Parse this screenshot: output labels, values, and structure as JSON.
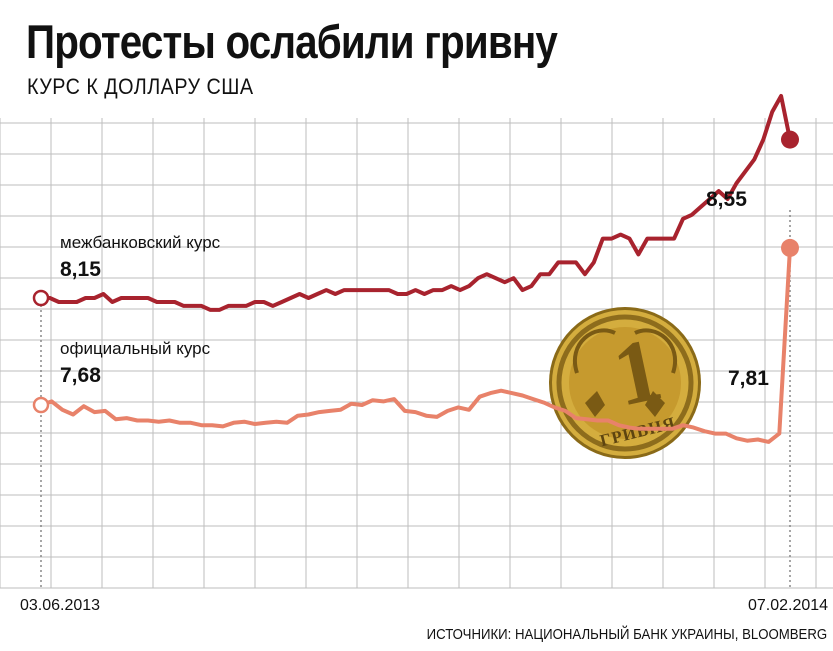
{
  "header": {
    "title": "Протесты ослабили гривну",
    "subtitle": "КУРС К ДОЛЛАРУ США"
  },
  "footer": {
    "source": "ИСТОЧНИКИ: НАЦИОНАЛЬНЫЙ БАНК УКРАИНЫ, BLOOMBERG"
  },
  "colors": {
    "interbank": "#a8232e",
    "official": "#e8826a",
    "grid": "#bdbdbd",
    "coin": "#c9a234"
  },
  "chart_data": {
    "type": "line",
    "x_start_label": "03.06.2013",
    "x_end_label": "07.02.2014",
    "grid": true,
    "series": [
      {
        "name": "межбанковский курс",
        "start_value_label": "8,15",
        "end_value_label": "8,55",
        "values": [
          8.15,
          8.15,
          8.14,
          8.14,
          8.14,
          8.15,
          8.15,
          8.16,
          8.14,
          8.15,
          8.15,
          8.15,
          8.15,
          8.14,
          8.14,
          8.14,
          8.13,
          8.13,
          8.13,
          8.12,
          8.12,
          8.13,
          8.13,
          8.13,
          8.14,
          8.14,
          8.13,
          8.14,
          8.15,
          8.16,
          8.15,
          8.16,
          8.17,
          8.16,
          8.17,
          8.17,
          8.17,
          8.17,
          8.17,
          8.17,
          8.16,
          8.16,
          8.17,
          8.16,
          8.17,
          8.17,
          8.18,
          8.17,
          8.18,
          8.2,
          8.21,
          8.2,
          8.19,
          8.2,
          8.17,
          8.18,
          8.21,
          8.21,
          8.24,
          8.24,
          8.24,
          8.21,
          8.24,
          8.3,
          8.3,
          8.31,
          8.3,
          8.26,
          8.3,
          8.3,
          8.3,
          8.3,
          8.35,
          8.36,
          8.38,
          8.4,
          8.42,
          8.4,
          8.44,
          8.47,
          8.5,
          8.55,
          8.62,
          8.66,
          8.55
        ]
      },
      {
        "name": "официальный курс",
        "start_value_label": "7,68",
        "end_value_label": "7,81",
        "values": [
          7.68,
          7.683,
          7.676,
          7.672,
          7.679,
          7.674,
          7.675,
          7.668,
          7.669,
          7.667,
          7.667,
          7.666,
          7.667,
          7.665,
          7.665,
          7.663,
          7.663,
          7.662,
          7.665,
          7.666,
          7.664,
          7.665,
          7.666,
          7.665,
          7.671,
          7.672,
          7.674,
          7.675,
          7.676,
          7.681,
          7.68,
          7.684,
          7.683,
          7.685,
          7.675,
          7.674,
          7.671,
          7.67,
          7.675,
          7.678,
          7.676,
          7.687,
          7.69,
          7.692,
          7.69,
          7.688,
          7.685,
          7.682,
          7.678,
          7.675,
          7.669,
          7.668,
          7.667,
          7.667,
          7.663,
          7.661,
          7.66,
          7.66,
          7.66,
          7.66,
          7.663,
          7.661,
          7.658,
          7.656,
          7.656,
          7.652,
          7.65,
          7.651,
          7.649,
          7.656,
          7.812
        ]
      }
    ]
  }
}
